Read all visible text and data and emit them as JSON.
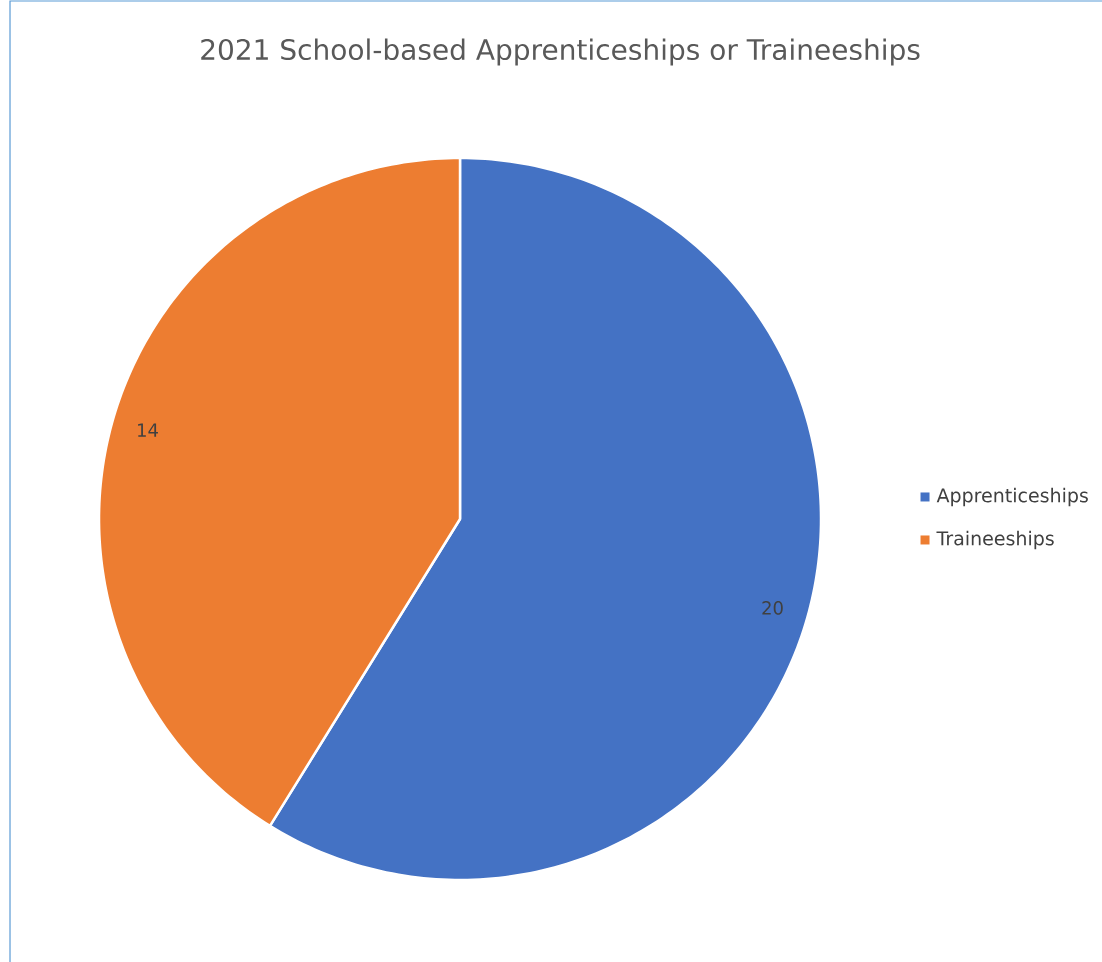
{
  "chart_data": {
    "type": "pie",
    "title": "2021 School-based Apprenticeships or Traineeships",
    "categories": [
      "Apprenticeships",
      "Traineeships"
    ],
    "values": [
      20,
      14
    ],
    "colors": [
      "#4472c4",
      "#ed7d31"
    ],
    "data_labels": true,
    "legend": "right"
  }
}
